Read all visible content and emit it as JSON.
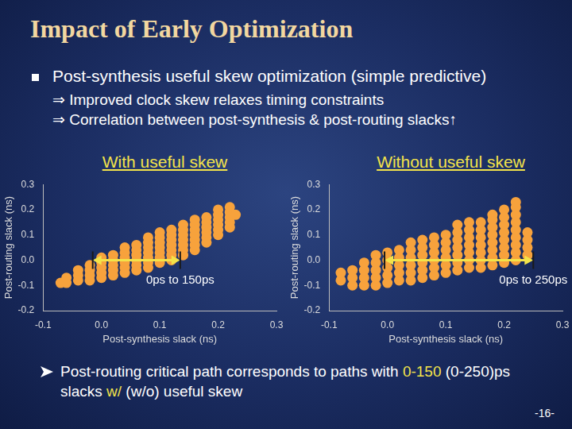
{
  "title": "Impact of Early Optimization",
  "bullet": {
    "text": "Post-synthesis useful skew optimization (simple predictive)",
    "points": [
      "⇒ Improved clock skew relaxes timing constraints",
      "⇒ Correlation between post-synthesis & post-routing slacks↑"
    ]
  },
  "chart_data": [
    {
      "type": "scatter",
      "title": "With useful skew",
      "x_label": "Post-synthesis slack (ns)",
      "y_label": "Post-routing slack (ns)",
      "x": [
        -0.07,
        -0.06,
        -0.06,
        -0.04,
        -0.04,
        -0.04,
        -0.02,
        -0.02,
        -0.02,
        -0.02,
        0,
        0,
        0,
        0,
        0,
        0.02,
        0.02,
        0.02,
        0.02,
        0.02,
        0.04,
        0.04,
        0.04,
        0.04,
        0.04,
        0.04,
        0.06,
        0.06,
        0.06,
        0.06,
        0.06,
        0.06,
        0.08,
        0.08,
        0.08,
        0.08,
        0.08,
        0.08,
        0.08,
        0.1,
        0.1,
        0.1,
        0.1,
        0.1,
        0.1,
        0.1,
        0.12,
        0.12,
        0.12,
        0.12,
        0.12,
        0.12,
        0.12,
        0.14,
        0.14,
        0.14,
        0.14,
        0.14,
        0.14,
        0.14,
        0.16,
        0.16,
        0.16,
        0.16,
        0.16,
        0.16,
        0.16,
        0.18,
        0.18,
        0.18,
        0.18,
        0.18,
        0.18,
        0.2,
        0.2,
        0.2,
        0.2,
        0.2,
        0.2,
        0.22,
        0.22,
        0.22,
        0.22,
        0.22,
        0.23
      ],
      "values": [
        -0.09,
        -0.09,
        -0.07,
        -0.08,
        -0.06,
        -0.04,
        -0.08,
        -0.06,
        -0.04,
        -0.02,
        -0.07,
        -0.05,
        -0.03,
        -0.01,
        0.01,
        -0.06,
        -0.04,
        -0.02,
        0,
        0.02,
        -0.05,
        -0.03,
        -0.01,
        0.01,
        0.03,
        0.05,
        -0.04,
        -0.02,
        0,
        0.02,
        0.04,
        0.06,
        -0.03,
        -0.01,
        0.01,
        0.03,
        0.05,
        0.07,
        0.09,
        -0.01,
        0.01,
        0.03,
        0.05,
        0.07,
        0.09,
        0.11,
        0,
        0.02,
        0.04,
        0.06,
        0.08,
        0.1,
        0.12,
        0.02,
        0.04,
        0.06,
        0.08,
        0.1,
        0.12,
        0.14,
        0.04,
        0.06,
        0.08,
        0.1,
        0.12,
        0.14,
        0.16,
        0.07,
        0.09,
        0.11,
        0.13,
        0.15,
        0.17,
        0.1,
        0.12,
        0.14,
        0.16,
        0.18,
        0.2,
        0.13,
        0.15,
        0.17,
        0.19,
        0.21,
        0.18
      ],
      "color": "#f7a23c",
      "xlim": [
        -0.1,
        0.3
      ],
      "xticks": [
        -0.1,
        {
          "value": 0,
          "label": "0.0"
        },
        0.1,
        0.2,
        0.3
      ],
      "ylim": [
        -0.2,
        0.3
      ],
      "yticks": [
        -0.2,
        -0.1,
        {
          "value": 0,
          "label": "0.0"
        },
        0.1,
        0.2,
        0.3
      ],
      "grid": false,
      "annotations": [
        {
          "text": "0ps to 150ps",
          "from": -0.015,
          "to": 0.135,
          "y": 0
        }
      ]
    },
    {
      "type": "scatter",
      "title": "Without useful skew",
      "x_label": "Post-synthesis slack (ns)",
      "y_label": "Post-routing slack (ns)",
      "x": [
        -0.08,
        -0.08,
        -0.06,
        -0.06,
        -0.06,
        -0.04,
        -0.04,
        -0.04,
        -0.04,
        -0.02,
        -0.02,
        -0.02,
        -0.02,
        -0.02,
        0,
        0,
        0,
        0,
        0,
        0.02,
        0.02,
        0.02,
        0.02,
        0.02,
        0.04,
        0.04,
        0.04,
        0.04,
        0.04,
        0.04,
        0.06,
        0.06,
        0.06,
        0.06,
        0.06,
        0.06,
        0.08,
        0.08,
        0.08,
        0.08,
        0.08,
        0.08,
        0.1,
        0.1,
        0.1,
        0.1,
        0.1,
        0.1,
        0.12,
        0.12,
        0.12,
        0.12,
        0.12,
        0.12,
        0.12,
        0.14,
        0.14,
        0.14,
        0.14,
        0.14,
        0.14,
        0.14,
        0.16,
        0.16,
        0.16,
        0.16,
        0.16,
        0.16,
        0.16,
        0.18,
        0.18,
        0.18,
        0.18,
        0.18,
        0.18,
        0.18,
        0.18,
        0.2,
        0.2,
        0.2,
        0.2,
        0.2,
        0.2,
        0.2,
        0.2,
        0.22,
        0.22,
        0.22,
        0.22,
        0.22,
        0.22,
        0.22,
        0.22,
        0.22,
        0.24,
        0.24,
        0.24,
        0.24
      ],
      "values": [
        -0.08,
        -0.05,
        -0.1,
        -0.07,
        -0.04,
        -0.1,
        -0.07,
        -0.04,
        -0.01,
        -0.1,
        -0.07,
        -0.04,
        -0.01,
        0.02,
        -0.09,
        -0.06,
        -0.03,
        0,
        0.03,
        -0.08,
        -0.05,
        -0.02,
        0.01,
        0.04,
        -0.08,
        -0.05,
        -0.02,
        0.01,
        0.04,
        0.07,
        -0.07,
        -0.04,
        -0.01,
        0.02,
        0.05,
        0.08,
        -0.06,
        -0.03,
        0,
        0.03,
        0.06,
        0.09,
        -0.05,
        -0.02,
        0.01,
        0.04,
        0.07,
        0.1,
        -0.04,
        -0.01,
        0.02,
        0.05,
        0.08,
        0.11,
        0.14,
        -0.03,
        0,
        0.03,
        0.06,
        0.09,
        0.12,
        0.15,
        -0.03,
        0,
        0.03,
        0.06,
        0.09,
        0.12,
        0.15,
        -0.02,
        0.01,
        0.04,
        0.07,
        0.1,
        0.13,
        0.16,
        0.18,
        -0.01,
        0.02,
        0.05,
        0.08,
        0.11,
        0.14,
        0.17,
        0.2,
        0,
        0.03,
        0.06,
        0.09,
        0.12,
        0.15,
        0.18,
        0.21,
        0.23,
        0.02,
        0.05,
        0.08,
        0.11
      ],
      "color": "#f7a23c",
      "xlim": [
        -0.1,
        0.3
      ],
      "xticks": [
        -0.1,
        {
          "value": 0,
          "label": "0.0"
        },
        0.1,
        0.2,
        0.3
      ],
      "ylim": [
        -0.2,
        0.3
      ],
      "yticks": [
        -0.2,
        -0.1,
        {
          "value": 0,
          "label": "0.0"
        },
        0.1,
        0.2,
        0.3
      ],
      "grid": false,
      "annotations": [
        {
          "text": "0ps to 250ps",
          "from": -0.005,
          "to": 0.25,
          "y": 0
        }
      ]
    }
  ],
  "conclusion": [
    {
      "text": "Post-routing critical path corresponds to paths with "
    },
    {
      "text": "0-150",
      "highlight": true
    },
    {
      "text": " (0-250)ps slacks "
    },
    {
      "text": "w/",
      "highlight": true
    },
    {
      "text": " (w/o) useful skew"
    }
  ],
  "page_number": "-16-"
}
